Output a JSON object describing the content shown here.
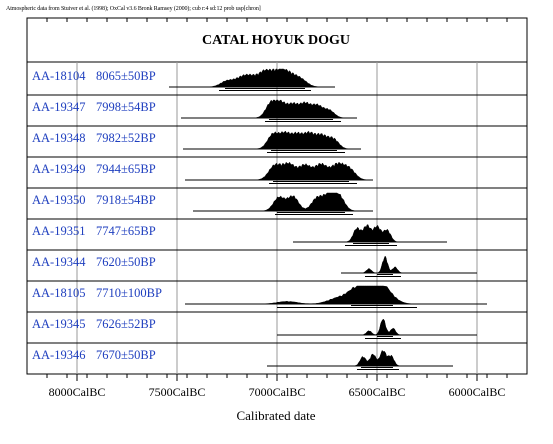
{
  "credit": "Atmospheric data from Stuiver et al. (1998); OxCal v3.6 Bronk Ramsey (2000); cub r:4 sd:12 prob usp[chron]",
  "chart_data": {
    "type": "range",
    "title": "CATAL HOYUK DOGU",
    "xlabel": "Calibrated date",
    "x_axis_direction": "descending",
    "xlim_BC": [
      8250,
      5750
    ],
    "ticks_major_BC": [
      8000,
      7500,
      7000,
      6500,
      6000
    ],
    "tick_labels": [
      "8000CalBC",
      "7500CalBC",
      "7000CalBC",
      "6500CalBC",
      "6000CalBC"
    ],
    "minor_tick_step": 100,
    "grid": "vertical gridlines at major ticks",
    "series": [
      {
        "lab": "AA-18104",
        "date": "8065±50BP",
        "range_BC": [
          7540,
          6710
        ],
        "hpd1_BC": [
          7260,
          6860
        ],
        "hpd2_BC": [
          7290,
          6830
        ],
        "peaks_BC": [
          7250,
          7180,
          7130,
          7060,
          7000,
          6970,
          6930,
          6880
        ],
        "peak_heights": [
          0.35,
          0.45,
          0.5,
          0.85,
          0.55,
          0.5,
          0.45,
          0.4
        ]
      },
      {
        "lab": "AA-19347",
        "date": "7998±54BP",
        "range_BC": [
          7480,
          6600
        ],
        "hpd1_BC": [
          7040,
          6720
        ],
        "hpd2_BC": [
          7060,
          6680
        ],
        "peaks_BC": [
          7030,
          6980,
          6920,
          6860,
          6800,
          6740
        ],
        "peak_heights": [
          0.85,
          0.8,
          0.75,
          0.8,
          0.7,
          0.45
        ]
      },
      {
        "lab": "AA-19348",
        "date": "7982±52BP",
        "range_BC": [
          7470,
          6580
        ],
        "hpd1_BC": [
          7030,
          6700
        ],
        "hpd2_BC": [
          7050,
          6660
        ],
        "peaks_BC": [
          7020,
          6960,
          6900,
          6840,
          6780,
          6720
        ],
        "peak_heights": [
          0.85,
          0.85,
          0.8,
          0.85,
          0.75,
          0.6
        ]
      },
      {
        "lab": "AA-19349",
        "date": "7944±65BP",
        "range_BC": [
          7460,
          6520
        ],
        "hpd1_BC": [
          7020,
          6640
        ],
        "hpd2_BC": [
          7040,
          6600
        ],
        "peaks_BC": [
          7010,
          6940,
          6860,
          6780,
          6700,
          6640
        ],
        "peak_heights": [
          0.85,
          0.9,
          0.85,
          0.9,
          0.85,
          0.65
        ]
      },
      {
        "lab": "AA-19350",
        "date": "7918±54BP",
        "range_BC": [
          7420,
          6520
        ],
        "hpd1_BC": [
          7000,
          6660
        ],
        "hpd2_BC": [
          7010,
          6620
        ],
        "peaks_BC": [
          6990,
          6920,
          6800,
          6740,
          6690
        ],
        "peak_heights": [
          0.8,
          0.85,
          0.75,
          0.9,
          0.85
        ]
      },
      {
        "lab": "AA-19351",
        "date": "7747±65BP",
        "range_BC": [
          6920,
          6150
        ],
        "hpd1_BC": [
          6620,
          6440
        ],
        "hpd2_BC": [
          6660,
          6400
        ],
        "peaks_BC": [
          6600,
          6550,
          6500,
          6450
        ],
        "peak_heights": [
          0.8,
          0.95,
          0.9,
          0.7
        ]
      },
      {
        "lab": "AA-19344",
        "date": "7620±50BP",
        "range_BC": [
          6680,
          6000
        ],
        "hpd1_BC": [
          6500,
          6420
        ],
        "hpd2_BC": [
          6560,
          6380
        ],
        "peaks_BC": [
          6540,
          6460,
          6410
        ],
        "peak_heights": [
          0.25,
          0.95,
          0.35
        ]
      },
      {
        "lab": "AA-18105",
        "date": "7710±100BP",
        "range_BC": [
          7460,
          5950
        ],
        "hpd1_BC": [
          6630,
          6420
        ],
        "hpd2_BC": [
          7000,
          6300
        ],
        "peaks_BC": [
          6950,
          6700,
          6600,
          6530,
          6470
        ],
        "peak_heights": [
          0.15,
          0.3,
          0.75,
          0.9,
          0.8
        ]
      },
      {
        "lab": "AA-19345",
        "date": "7626±52BP",
        "range_BC": [
          7000,
          6000
        ],
        "hpd1_BC": [
          6500,
          6420
        ],
        "hpd2_BC": [
          6560,
          6380
        ],
        "peaks_BC": [
          6540,
          6470,
          6420
        ],
        "peak_heights": [
          0.25,
          0.95,
          0.4
        ]
      },
      {
        "lab": "AA-19346",
        "date": "7670±50BP",
        "range_BC": [
          7050,
          6120
        ],
        "hpd1_BC": [
          6580,
          6420
        ],
        "hpd2_BC": [
          6600,
          6390
        ],
        "peaks_BC": [
          6570,
          6520,
          6470,
          6430
        ],
        "peak_heights": [
          0.55,
          0.7,
          0.9,
          0.6
        ]
      }
    ]
  }
}
